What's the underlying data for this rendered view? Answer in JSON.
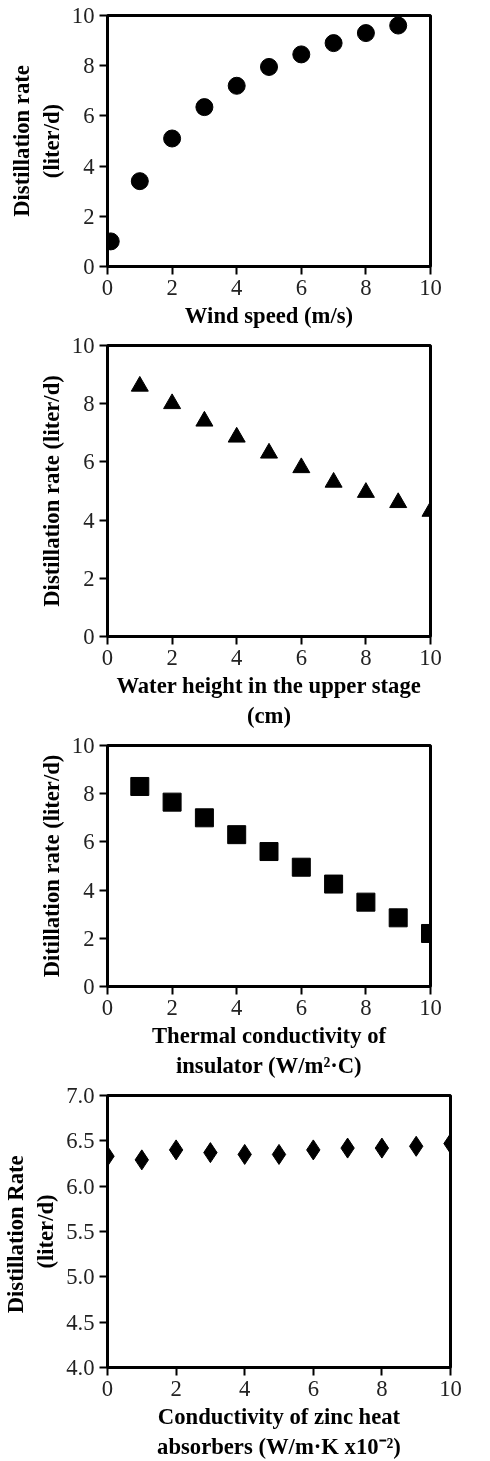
{
  "chart_data": [
    {
      "type": "scatter",
      "xlabel": "Wind speed (m/s)",
      "ylabel": "Distillation rate\n(liter/d)",
      "x": [
        0.1,
        1,
        2,
        3,
        4,
        5,
        6,
        7,
        8,
        9
      ],
      "series": [
        {
          "color": "#000000",
          "values": [
            1.0,
            3.4,
            5.1,
            6.35,
            7.2,
            7.95,
            8.45,
            8.9,
            9.3,
            9.6
          ]
        }
      ],
      "xlim": [
        0,
        10
      ],
      "ylim": [
        0,
        10
      ],
      "xticks": [
        0,
        2,
        4,
        6,
        8,
        10
      ],
      "yticks": [
        0,
        2,
        4,
        6,
        8,
        10
      ],
      "grid": false,
      "marker": "circle"
    },
    {
      "type": "scatter",
      "xlabel": "Water height in the upper stage\n(cm)",
      "ylabel": "Distillation rate (liter/d)",
      "x": [
        1,
        2,
        3,
        4,
        5,
        6,
        7,
        8,
        9,
        10
      ],
      "series": [
        {
          "color": "#000000",
          "values": [
            8.6,
            8.0,
            7.4,
            6.85,
            6.3,
            5.8,
            5.3,
            4.95,
            4.6,
            4.3
          ]
        }
      ],
      "xlim": [
        0,
        10
      ],
      "ylim": [
        0,
        10
      ],
      "xticks": [
        0,
        2,
        4,
        6,
        8,
        10
      ],
      "yticks": [
        0,
        2,
        4,
        6,
        8,
        10
      ],
      "grid": false,
      "marker": "triangle"
    },
    {
      "type": "scatter",
      "xlabel": "Thermal conductivity of\ninsulator (W/m²·C)",
      "ylabel": "Ditillation rate (liter/d)",
      "x": [
        1,
        2,
        3,
        4,
        5,
        6,
        7,
        8,
        9,
        10
      ],
      "series": [
        {
          "color": "#000000",
          "values": [
            8.3,
            7.65,
            7.0,
            6.3,
            5.6,
            4.95,
            4.25,
            3.5,
            2.85,
            2.2
          ]
        }
      ],
      "xlim": [
        0,
        10
      ],
      "ylim": [
        0,
        10
      ],
      "xticks": [
        0,
        2,
        4,
        6,
        8,
        10
      ],
      "yticks": [
        0,
        2,
        4,
        6,
        8,
        10
      ],
      "grid": false,
      "marker": "square"
    },
    {
      "type": "scatter",
      "xlabel": "Conductivity of zinc heat\nabsorbers (W/m·K x10⁻²)",
      "ylabel": "Distillation  Rate\n(liter/d)",
      "x": [
        0,
        1,
        2,
        3,
        4,
        5,
        6,
        7,
        8,
        9,
        10
      ],
      "series": [
        {
          "color": "#000000",
          "values": [
            6.33,
            6.29,
            6.4,
            6.37,
            6.35,
            6.35,
            6.4,
            6.42,
            6.42,
            6.44,
            6.47
          ]
        }
      ],
      "xlim": [
        0,
        10
      ],
      "ylim": [
        4,
        7
      ],
      "xticks": [
        0,
        2,
        4,
        6,
        8,
        10
      ],
      "yticks": [
        {
          "value": 4,
          "label": "4.0"
        },
        {
          "value": 4.5,
          "label": "4.5"
        },
        {
          "value": 5,
          "label": "5.0"
        },
        {
          "value": 5.5,
          "label": "5.5"
        },
        {
          "value": 6,
          "label": "6.0"
        },
        {
          "value": 6.5,
          "label": "6.5"
        },
        {
          "value": 7,
          "label": "7.0"
        }
      ],
      "grid": false,
      "marker": "diamond"
    }
  ]
}
